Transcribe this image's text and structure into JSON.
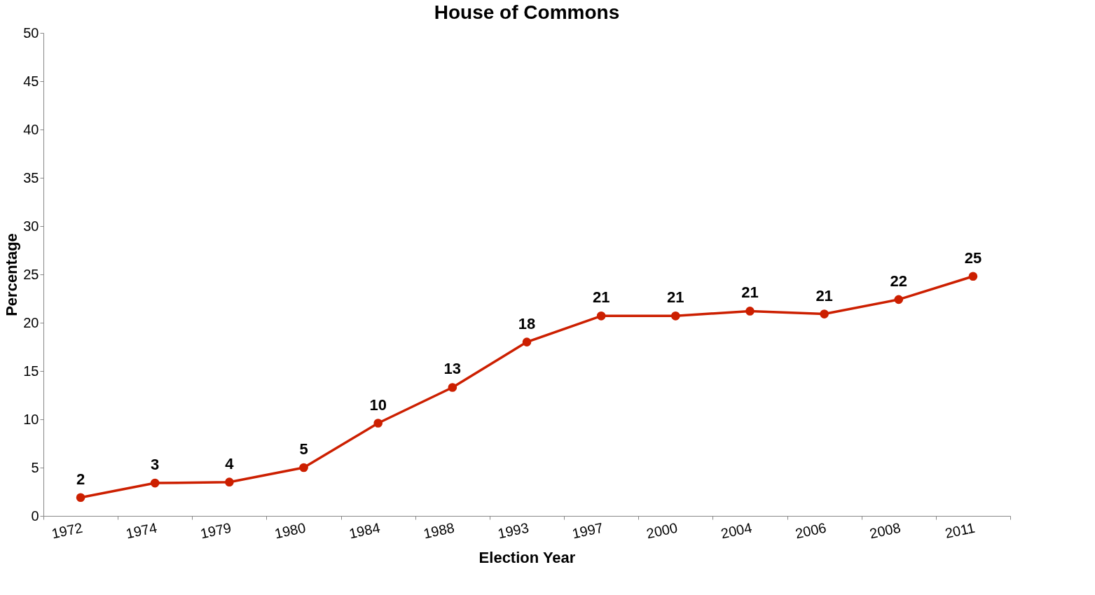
{
  "chart_data": {
    "type": "line",
    "title": "House of Commons",
    "xlabel": "Election Year",
    "ylabel": "Percentage",
    "categories": [
      "1972",
      "1974",
      "1979",
      "1980",
      "1984",
      "1988",
      "1993",
      "1997",
      "2000",
      "2004",
      "2006",
      "2008",
      "2011"
    ],
    "series": [
      {
        "color": "#cc1f00",
        "values": [
          1.9,
          3.4,
          3.5,
          5.0,
          9.6,
          13.3,
          18.0,
          20.7,
          20.7,
          21.2,
          20.9,
          22.4,
          24.8
        ],
        "value_labels": [
          "2",
          "3",
          "4",
          "5",
          "10",
          "13",
          "18",
          "21",
          "21",
          "21",
          "21",
          "22",
          "25"
        ]
      }
    ],
    "ylim": [
      0,
      50
    ],
    "yticks": [
      0,
      5,
      10,
      15,
      20,
      25,
      30,
      35,
      40,
      45,
      50
    ],
    "grid": false,
    "marker": "circle",
    "line_style": "solid"
  }
}
